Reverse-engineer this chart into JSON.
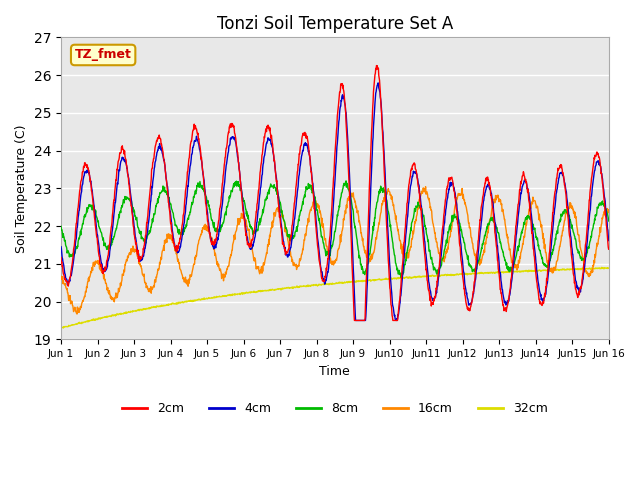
{
  "title": "Tonzi Soil Temperature Set A",
  "xlabel": "Time",
  "ylabel": "Soil Temperature (C)",
  "ylim": [
    19.0,
    27.0
  ],
  "yticks": [
    19.0,
    20.0,
    21.0,
    22.0,
    23.0,
    24.0,
    25.0,
    26.0,
    27.0
  ],
  "bg_color": "#e8e8e8",
  "annotation_label": "TZ_fmet",
  "annotation_bg": "#ffffcc",
  "annotation_border": "#cc9900",
  "series_colors": {
    "2cm": "#ff0000",
    "4cm": "#0000cc",
    "8cm": "#00bb00",
    "16cm": "#ff8800",
    "32cm": "#dddd00"
  },
  "xtick_labels": [
    "Jun 1",
    "Jun 2",
    "Jun 3",
    "Jun 4",
    "Jun 5",
    "Jun 6",
    "Jun 7",
    "Jun 8",
    "Jun 9",
    "Jun10",
    "Jun11",
    "Jun12",
    "Jun13",
    "Jun14",
    "Jun15",
    "Jun 16"
  ],
  "n_days": 15,
  "pts_per_day": 96
}
